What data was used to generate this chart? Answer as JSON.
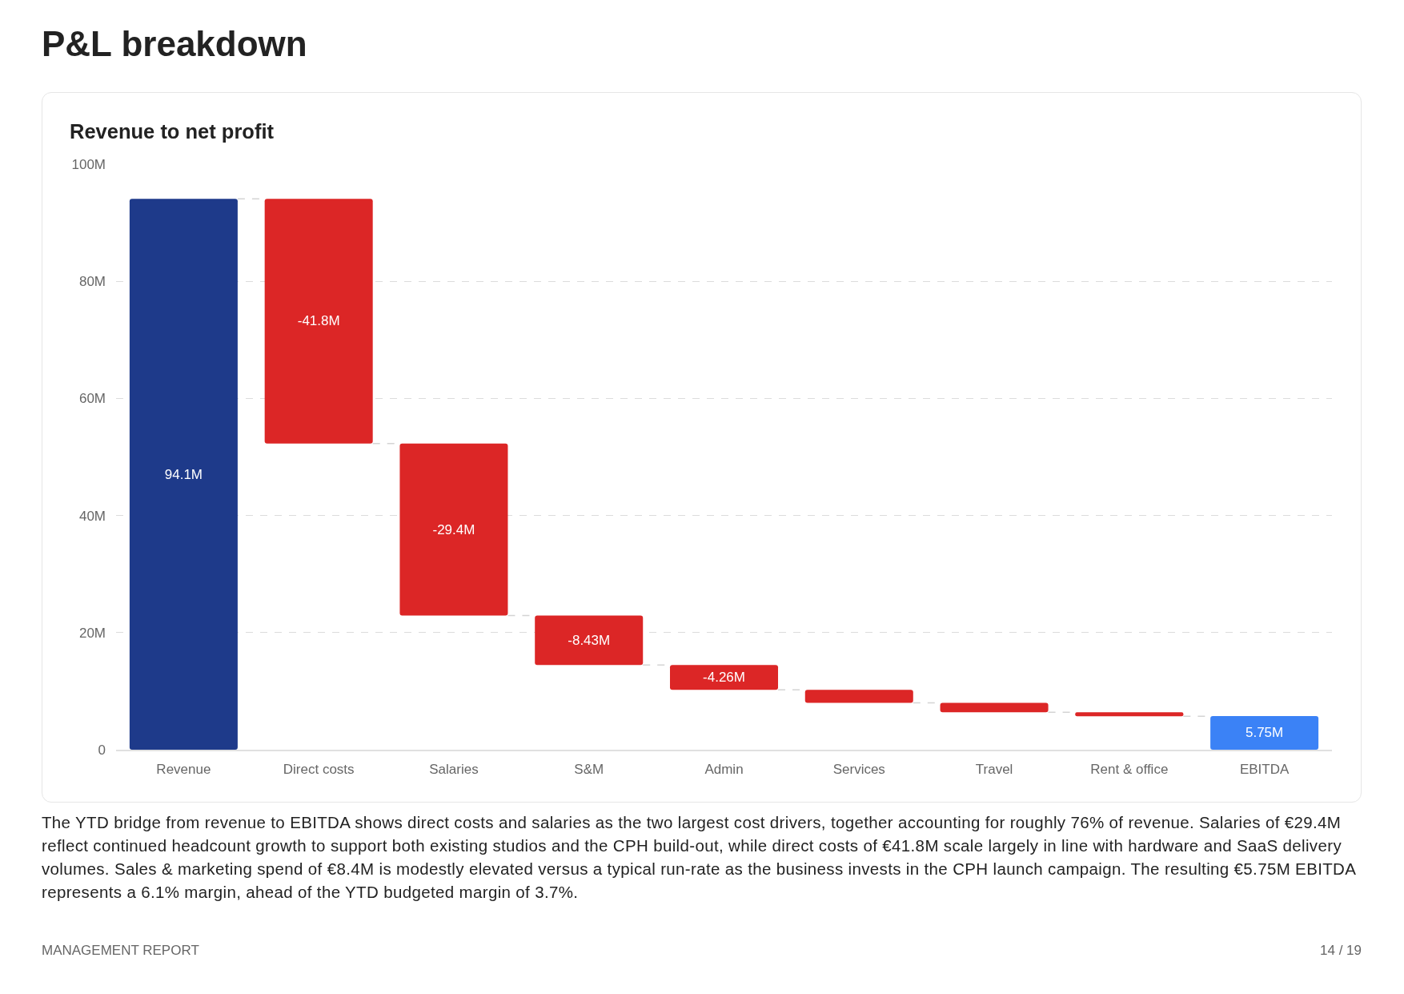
{
  "chart_data": {
    "type": "bar",
    "title": "P&L breakdown",
    "subtitle": "Revenue to net profit",
    "categories": [
      "Revenue",
      "Direct costs",
      "Salaries",
      "S&M",
      "Admin",
      "Services",
      "Travel",
      "Rent & office",
      "EBITDA"
    ],
    "values": [
      94.1,
      -41.8,
      -29.4,
      -8.43,
      -4.26,
      -2.2,
      -1.6,
      -0.7,
      5.75
    ],
    "base": [
      0,
      94.1,
      52.3,
      22.9,
      14.47,
      10.21,
      8.01,
      6.41,
      0
    ],
    "colors": [
      "#1e3a8a",
      "#dc2626",
      "#dc2626",
      "#dc2626",
      "#dc2626",
      "#dc2626",
      "#dc2626",
      "#dc2626",
      "#3b82f6"
    ],
    "value_labels": [
      "94.1M",
      "-41.8M",
      "-29.4M",
      "-8.43M",
      "-4.26M",
      null,
      null,
      null,
      "5.75M"
    ],
    "ylim": [
      0,
      100
    ],
    "yticks": [
      0,
      {
        "value": 20,
        "label": "20M"
      },
      {
        "value": 40,
        "label": "40M"
      },
      {
        "value": 60,
        "label": "60M"
      },
      {
        "value": 80,
        "label": "80M"
      },
      {
        "value": 100,
        "label": "100M"
      }
    ],
    "grid": "y",
    "annotations": [
      "The YTD bridge from revenue to EBITDA shows direct costs and salaries as the two largest cost drivers, together accounting for roughly 76% of revenue. Salaries of €29.4M reflect continued headcount growth to support both existing studios and the CPH build-out, while direct costs of €41.8M scale largely in line with hardware and SaaS delivery volumes. Sales & marketing spend of €8.4M is modestly elevated versus a typical run-rate as the business invests in the CPH launch campaign. The resulting €5.75M EBITDA represents a 6.1% margin, ahead of the YTD budgeted margin of 3.7%.",
      "MANAGEMENT REPORT",
      "14 / 19"
    ]
  }
}
